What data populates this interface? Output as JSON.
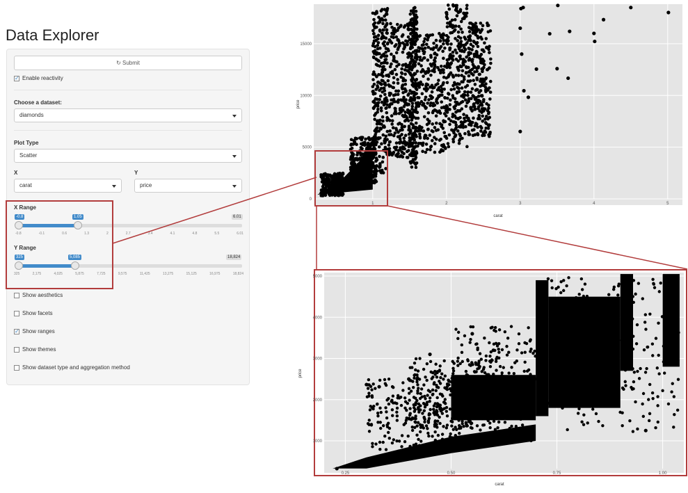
{
  "title": "Data Explorer",
  "submit_label": "Submit",
  "enable_reactivity": {
    "label": "Enable reactivity",
    "checked": true
  },
  "dataset": {
    "label": "Choose a dataset:",
    "value": "diamonds"
  },
  "plot_type": {
    "label": "Plot Type",
    "value": "Scatter"
  },
  "x_select": {
    "label": "X",
    "value": "carat"
  },
  "y_select": {
    "label": "Y",
    "value": "price"
  },
  "x_range": {
    "label": "X Range",
    "min": "-0.8",
    "max": "6.01",
    "low": "-0.8",
    "high": "1.05",
    "ticks": [
      "-0.8",
      "-0.1",
      "0.6",
      "1.3",
      "2",
      "2.7",
      "3.4",
      "4.1",
      "4.8",
      "5.5",
      "6.01"
    ]
  },
  "y_range": {
    "label": "Y Range",
    "min": "325",
    "max": "18,824",
    "low": "325",
    "high": "5,085",
    "ticks": [
      "325",
      "2,175",
      "4,025",
      "5,875",
      "7,725",
      "9,575",
      "11,425",
      "13,275",
      "15,125",
      "16,975",
      "18,824"
    ]
  },
  "options": [
    {
      "label": "Show aesthetics",
      "checked": false
    },
    {
      "label": "Show facets",
      "checked": false
    },
    {
      "label": "Show ranges",
      "checked": true
    },
    {
      "label": "Show themes",
      "checked": false
    },
    {
      "label": "Show dataset type and aggregation method",
      "checked": false
    }
  ],
  "colors": {
    "accent": "#428bca",
    "highlight": "#b23c3c",
    "plot_bg": "#e5e5e5"
  },
  "chart_data": [
    {
      "type": "scatter",
      "xlabel": "carat",
      "ylabel": "price",
      "xlim": [
        0.2,
        5.2
      ],
      "ylim": [
        0,
        18824
      ],
      "xticks": [
        "1",
        "2",
        "3",
        "4",
        "5"
      ],
      "yticks": [
        "0",
        "5000",
        "10000",
        "15000"
      ],
      "points": [
        [
          4.5,
          18500
        ],
        [
          5.01,
          18018
        ],
        [
          4.01,
          15223
        ],
        [
          4.0,
          16000
        ],
        [
          3.65,
          11668
        ],
        [
          3.67,
          16193
        ],
        [
          3.4,
          15964
        ],
        [
          3.51,
          18701
        ],
        [
          3.04,
          18500
        ],
        [
          3.01,
          18400
        ],
        [
          3.5,
          12587
        ],
        [
          3.22,
          12545
        ],
        [
          4.13,
          17329
        ],
        [
          3.0,
          6512
        ],
        [
          3.05,
          10453
        ],
        [
          3.11,
          9823
        ],
        [
          3.02,
          14000
        ],
        [
          3.0,
          16500
        ],
        [
          2.0,
          18000
        ]
      ]
    },
    {
      "type": "scatter",
      "xlabel": "carat",
      "ylabel": "price",
      "xlim": [
        0.2,
        1.05
      ],
      "ylim": [
        325,
        5085
      ],
      "xticks": [
        "0.25",
        "0.50",
        "0.75",
        "1.00"
      ],
      "yticks": [
        "1000",
        "2000",
        "3000",
        "4000",
        "5000"
      ],
      "points": [
        [
          0.23,
          326
        ],
        [
          0.3,
          2366
        ],
        [
          0.33,
          2314
        ],
        [
          0.4,
          2500
        ],
        [
          0.45,
          3100
        ],
        [
          0.55,
          3600
        ],
        [
          0.6,
          3200
        ],
        [
          0.96,
          1250
        ]
      ]
    }
  ]
}
